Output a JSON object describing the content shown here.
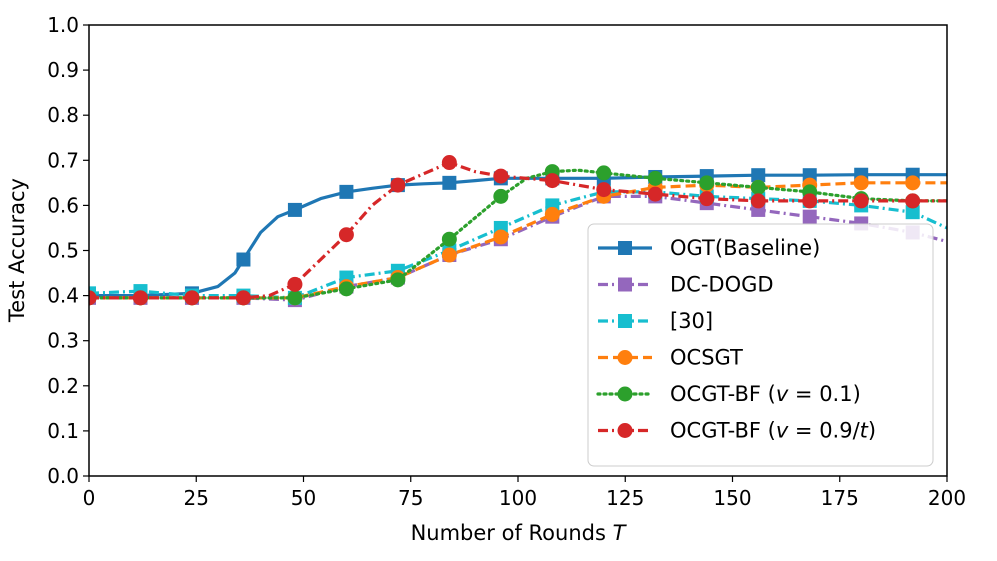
{
  "chart_data": {
    "type": "line",
    "xlabel": "Number of Rounds ",
    "xlabel_var": "T",
    "ylabel": "Test Accuracy",
    "xlim": [
      0,
      200
    ],
    "ylim": [
      0.0,
      1.0
    ],
    "xticks": [
      "0",
      "25",
      "50",
      "75",
      "100",
      "125",
      "150",
      "175",
      "200"
    ],
    "yticks": [
      "0.0",
      "0.1",
      "0.2",
      "0.3",
      "0.4",
      "0.5",
      "0.6",
      "0.7",
      "0.8",
      "0.9",
      "1.0"
    ],
    "grid": false,
    "legend_position": "lower-right",
    "series": [
      {
        "name": "OGT(Baseline)",
        "color": "#1f77b4",
        "dash": "solid",
        "marker": "square",
        "x": [
          0,
          12,
          24,
          30,
          34,
          36,
          40,
          44,
          48,
          54,
          60,
          66,
          72,
          78,
          84,
          90,
          96,
          108,
          120,
          132,
          144,
          156,
          168,
          180,
          192,
          200
        ],
        "y": [
          0.4,
          0.4,
          0.405,
          0.42,
          0.45,
          0.48,
          0.54,
          0.575,
          0.59,
          0.615,
          0.63,
          0.638,
          0.645,
          0.648,
          0.65,
          0.655,
          0.66,
          0.66,
          0.66,
          0.663,
          0.665,
          0.667,
          0.667,
          0.668,
          0.668,
          0.668
        ]
      },
      {
        "name": "DC-DOGD",
        "color": "#9467bd",
        "dash": "dashdot",
        "marker": "square",
        "x": [
          0,
          12,
          24,
          36,
          48,
          60,
          72,
          84,
          96,
          108,
          120,
          132,
          144,
          156,
          168,
          180,
          192,
          200
        ],
        "y": [
          0.395,
          0.395,
          0.395,
          0.395,
          0.39,
          0.42,
          0.44,
          0.49,
          0.525,
          0.575,
          0.62,
          0.62,
          0.605,
          0.59,
          0.575,
          0.56,
          0.54,
          0.52
        ]
      },
      {
        "name": "[30]",
        "color": "#17becf",
        "dash": "dashdot",
        "marker": "square",
        "x": [
          0,
          12,
          24,
          36,
          48,
          60,
          72,
          84,
          96,
          108,
          120,
          132,
          144,
          156,
          168,
          180,
          192,
          200
        ],
        "y": [
          0.405,
          0.41,
          0.4,
          0.4,
          0.395,
          0.44,
          0.455,
          0.5,
          0.55,
          0.6,
          0.63,
          0.63,
          0.62,
          0.615,
          0.61,
          0.6,
          0.585,
          0.55
        ]
      },
      {
        "name": "OCSGT",
        "color": "#ff7f0e",
        "dash": "dashed",
        "marker": "circle",
        "x": [
          0,
          12,
          24,
          36,
          48,
          60,
          72,
          84,
          96,
          108,
          120,
          132,
          144,
          156,
          168,
          180,
          192,
          200
        ],
        "y": [
          0.395,
          0.395,
          0.395,
          0.395,
          0.395,
          0.42,
          0.44,
          0.49,
          0.53,
          0.58,
          0.62,
          0.64,
          0.645,
          0.64,
          0.645,
          0.65,
          0.65,
          0.65
        ]
      },
      {
        "name": "OCGT-BF (v = 0.1)",
        "name_prefix": "OCGT-BF (",
        "name_var": "v",
        "name_suffix": " = 0.1)",
        "color": "#2ca02c",
        "dash": "dotted",
        "marker": "circle",
        "x": [
          0,
          12,
          24,
          36,
          48,
          60,
          72,
          84,
          96,
          102,
          108,
          114,
          120,
          132,
          144,
          156,
          168,
          180,
          192,
          200
        ],
        "y": [
          0.395,
          0.395,
          0.395,
          0.395,
          0.395,
          0.415,
          0.435,
          0.525,
          0.62,
          0.66,
          0.675,
          0.678,
          0.672,
          0.66,
          0.65,
          0.64,
          0.63,
          0.615,
          0.61,
          0.61
        ]
      },
      {
        "name": "OCGT-BF (v = 0.9/t)",
        "name_prefix": "OCGT-BF (",
        "name_var": "v",
        "name_mid": " = 0.9/",
        "name_var2": "t",
        "name_suffix": ")",
        "color": "#d62728",
        "dash": "dashdot",
        "marker": "circle",
        "x": [
          0,
          12,
          24,
          36,
          42,
          48,
          54,
          60,
          66,
          72,
          78,
          84,
          90,
          96,
          108,
          120,
          132,
          144,
          156,
          168,
          180,
          192,
          200
        ],
        "y": [
          0.395,
          0.395,
          0.395,
          0.395,
          0.4,
          0.425,
          0.48,
          0.535,
          0.6,
          0.645,
          0.67,
          0.695,
          0.675,
          0.665,
          0.655,
          0.635,
          0.625,
          0.615,
          0.61,
          0.61,
          0.61,
          0.61,
          0.61
        ]
      }
    ]
  }
}
